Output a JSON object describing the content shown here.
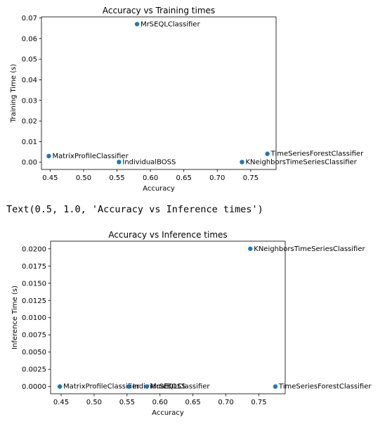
{
  "output_text": "Text(0.5, 1.0, 'Accuracy vs Inference times')",
  "chart_data": [
    {
      "type": "scatter",
      "title": "Accuracy vs Training times",
      "xlabel": "Accuracy",
      "ylabel": "Training Time (s)",
      "xlim": [
        0.437,
        0.788
      ],
      "ylim": [
        -0.0035,
        0.0705
      ],
      "xticks": [
        "0.45",
        "0.50",
        "0.55",
        "0.60",
        "0.65",
        "0.70",
        "0.75"
      ],
      "xtick_values": [
        0.45,
        0.5,
        0.55,
        0.6,
        0.65,
        0.7,
        0.75
      ],
      "yticks": [
        "0.00",
        "0.01",
        "0.02",
        "0.03",
        "0.04",
        "0.05",
        "0.06",
        "0.07"
      ],
      "ytick_values": [
        0.0,
        0.01,
        0.02,
        0.03,
        0.04,
        0.05,
        0.06,
        0.07
      ],
      "grid": false,
      "marker_color": "#1f77b4",
      "points": [
        {
          "label": "MrSEQLClassifier",
          "x": 0.58,
          "y": 0.067
        },
        {
          "label": "MatrixProfileClassifier",
          "x": 0.448,
          "y": 0.003
        },
        {
          "label": "IndividualBOSS",
          "x": 0.553,
          "y": 0.0001
        },
        {
          "label": "TimeSeriesForestClassifier",
          "x": 0.775,
          "y": 0.0041
        },
        {
          "label": "KNeighborsTimeSeriesClassifier",
          "x": 0.737,
          "y": 0.0001
        }
      ]
    },
    {
      "type": "scatter",
      "title": "Accuracy vs Inference times",
      "xlabel": "Accuracy",
      "ylabel": "Inference Time (s)",
      "xlim": [
        0.434,
        0.79
      ],
      "ylim": [
        -0.00105,
        0.0211
      ],
      "xticks": [
        "0.45",
        "0.50",
        "0.55",
        "0.60",
        "0.65",
        "0.70",
        "0.75"
      ],
      "xtick_values": [
        0.45,
        0.5,
        0.55,
        0.6,
        0.65,
        0.7,
        0.75
      ],
      "yticks": [
        "0.0000",
        "0.0025",
        "0.0050",
        "0.0075",
        "0.0100",
        "0.0125",
        "0.0150",
        "0.0175",
        "0.0200"
      ],
      "ytick_values": [
        0.0,
        0.0025,
        0.005,
        0.0075,
        0.01,
        0.0125,
        0.015,
        0.0175,
        0.02
      ],
      "grid": false,
      "marker_color": "#1f77b4",
      "points": [
        {
          "label": "KNeighborsTimeSeriesClassifier",
          "x": 0.737,
          "y": 0.02
        },
        {
          "label": "MatrixProfileClassifier",
          "x": 0.448,
          "y": 0.0
        },
        {
          "label": "IndividualBOSS",
          "x": 0.553,
          "y": 0.0
        },
        {
          "label": "MrSEQLClassifier",
          "x": 0.58,
          "y": 0.0
        },
        {
          "label": "TimeSeriesForestClassifier",
          "x": 0.775,
          "y": 0.0
        }
      ]
    }
  ]
}
